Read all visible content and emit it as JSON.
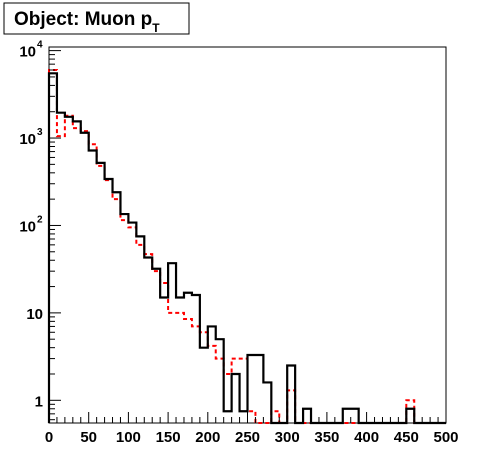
{
  "chart_data": {
    "type": "histogram",
    "title": {
      "text": "Object: Muon p",
      "subscript": "T"
    },
    "x": {
      "min": 0,
      "max": 500,
      "bin_width": 10,
      "ticks": [
        "0",
        "50",
        "100",
        "150",
        "200",
        "250",
        "300",
        "350",
        "400",
        "450",
        "500"
      ]
    },
    "y": {
      "scale": "log",
      "min": 0.55,
      "max": 11000,
      "ticks": [
        {
          "value": 1,
          "label": "1"
        },
        {
          "value": 10,
          "label": "10"
        },
        {
          "value": 100,
          "label": "10",
          "exponent": "2"
        },
        {
          "value": 1000,
          "label": "10",
          "exponent": "3"
        },
        {
          "value": 10000,
          "label": "10",
          "exponent": "4"
        }
      ]
    },
    "grid": false,
    "series": [
      {
        "style": "solid",
        "color": "#000000",
        "values": [
          5500,
          1950,
          1750,
          1550,
          1150,
          720,
          520,
          340,
          240,
          135,
          108,
          75,
          43,
          32,
          15,
          37,
          15,
          17,
          16,
          4,
          7,
          5,
          0.75,
          2,
          0.75,
          3.3,
          3.3,
          1.6,
          0.5,
          0.5,
          2.5,
          0.5,
          0.8,
          0.5,
          0.5,
          0.5,
          0.5,
          0.8,
          0.8,
          0.5,
          0.5,
          0.5,
          0.5,
          0.5,
          0.5,
          0.8,
          0.5,
          0.5,
          0.5,
          0.5
        ]
      },
      {
        "style": "dashed",
        "color": "#ff0000",
        "values": [
          6000,
          1050,
          1800,
          1300,
          1200,
          850,
          480,
          330,
          200,
          115,
          95,
          60,
          47,
          30,
          22,
          10,
          10,
          8.5,
          7,
          6,
          4.2,
          3,
          2,
          3,
          3,
          0.75,
          0.5,
          0.5,
          0.75,
          0.5,
          1.3,
          0.5,
          0.5,
          0.5,
          0.5,
          0.5,
          0.5,
          0.5,
          0.5,
          0.5,
          0.5,
          0.5,
          0.5,
          0.5,
          0.5,
          1,
          0.5,
          0.5,
          0.5,
          0.5
        ]
      }
    ]
  }
}
